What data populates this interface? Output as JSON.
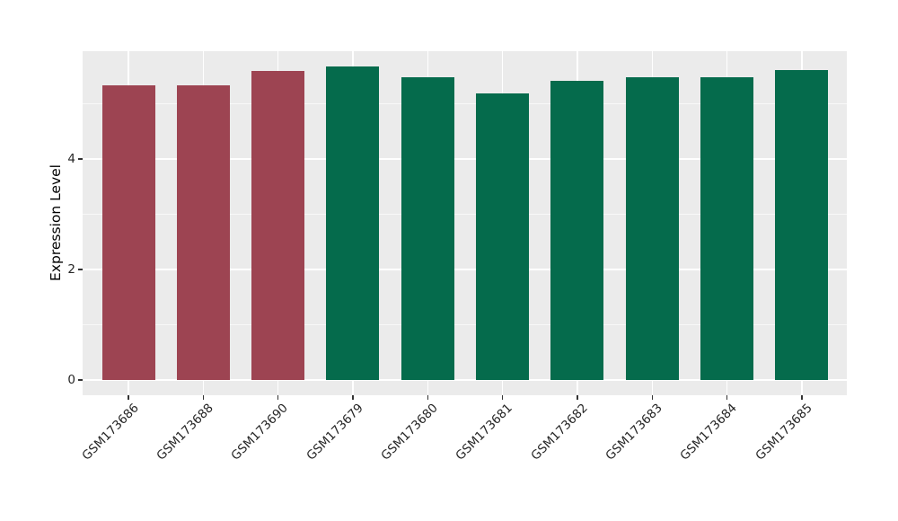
{
  "chart_data": {
    "type": "bar",
    "title": "",
    "xlabel": "",
    "ylabel": "Expression Level",
    "categories": [
      "GSM173686",
      "GSM173688",
      "GSM173690",
      "GSM173679",
      "GSM173680",
      "GSM173681",
      "GSM173682",
      "GSM173683",
      "GSM173684",
      "GSM173685"
    ],
    "values": [
      5.33,
      5.33,
      5.59,
      5.67,
      5.48,
      5.18,
      5.42,
      5.48,
      5.48,
      5.61
    ],
    "bar_colors": [
      "#9d4452",
      "#9d4452",
      "#9d4452",
      "#056b4c",
      "#056b4c",
      "#056b4c",
      "#056b4c",
      "#056b4c",
      "#056b4c",
      "#056b4c"
    ],
    "group_colors": {
      "group1": "#9d4452",
      "group2": "#056b4c"
    },
    "y_ticks": [
      0,
      2,
      4
    ],
    "y_tick_labels": [
      "0",
      "2",
      "4"
    ],
    "y_minor_ticks": [
      1,
      3,
      5
    ],
    "ylim": [
      -0.28,
      5.95
    ],
    "grid": true,
    "legend": false,
    "panel_background": "#ebebeb",
    "grid_color": "#ffffff",
    "tick_color": "#333333",
    "tick_label_color": "#262626",
    "axis_label_color": "#000000"
  }
}
